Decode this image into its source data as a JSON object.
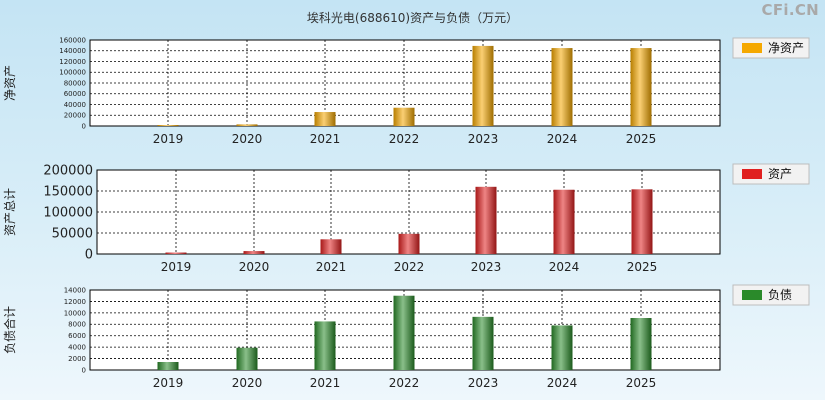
{
  "title": "埃科光电(688610)资产与负债（万元）",
  "watermark": "CFi.CN",
  "chart_data": [
    {
      "type": "bar",
      "ylabel": "净资产",
      "legend": "净资产",
      "legend_position": "right",
      "color": "#f5a800",
      "categories": [
        "2019",
        "2020",
        "2021",
        "2022",
        "2023",
        "2024",
        "2025"
      ],
      "values": [
        1500,
        3000,
        26000,
        34000,
        149000,
        145000,
        145000
      ],
      "ylim": [
        0,
        160000
      ],
      "yticks": [
        "0",
        "20000",
        "40000",
        "60000",
        "80000",
        "100000",
        "120000",
        "140000",
        "160000"
      ],
      "grid": true
    },
    {
      "type": "bar",
      "ylabel": "资产总计",
      "legend": "资产",
      "legend_position": "right",
      "color": "#e02020",
      "categories": [
        "2019",
        "2020",
        "2021",
        "2022",
        "2023",
        "2024",
        "2025"
      ],
      "values": [
        3500,
        7000,
        35000,
        48000,
        160000,
        153000,
        154000
      ],
      "ylim": [
        0,
        200000
      ],
      "yticks": [
        "0",
        "50000",
        "100000",
        "150000",
        "200000"
      ],
      "grid": true
    },
    {
      "type": "bar",
      "ylabel": "负债合计",
      "legend": "负债",
      "legend_position": "right",
      "color": "#2a8a2a",
      "categories": [
        "2019",
        "2020",
        "2021",
        "2022",
        "2023",
        "2024",
        "2025"
      ],
      "values": [
        1400,
        3900,
        8500,
        13000,
        9300,
        7800,
        9100
      ],
      "ylim": [
        0,
        14000
      ],
      "yticks": [
        "0",
        "2000",
        "4000",
        "6000",
        "8000",
        "10000",
        "12000",
        "14000"
      ],
      "grid": true
    }
  ]
}
